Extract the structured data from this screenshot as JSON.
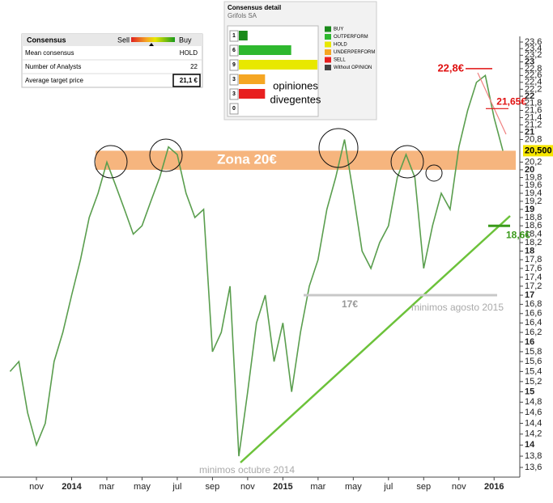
{
  "chart_data": [
    {
      "type": "line",
      "color": "#5a9e4e",
      "log": true,
      "x": [
        null,
        null,
        null,
        "nov",
        null,
        null,
        null,
        "2014",
        null,
        null,
        null,
        "mar",
        null,
        null,
        null,
        "may",
        null,
        null,
        null,
        "jul",
        null,
        null,
        null,
        "sep",
        null,
        null,
        null,
        "nov",
        null,
        null,
        null,
        "2015",
        null,
        null,
        null,
        "mar",
        null,
        null,
        null,
        "may",
        null,
        null,
        null,
        "jul",
        null,
        null,
        null,
        "sep",
        null,
        null,
        null,
        "nov",
        null,
        null,
        null,
        "2016",
        null
      ],
      "values": [
        15.4,
        15.6,
        14.6,
        14.0,
        14.4,
        15.6,
        16.2,
        17.0,
        17.8,
        18.8,
        19.4,
        20.2,
        19.6,
        19.0,
        18.4,
        18.6,
        19.2,
        19.8,
        20.6,
        20.4,
        19.4,
        18.8,
        19.0,
        15.8,
        16.2,
        17.2,
        13.8,
        15.0,
        16.4,
        17.0,
        15.6,
        16.4,
        15.0,
        16.2,
        17.2,
        17.8,
        19.0,
        19.8,
        20.8,
        19.4,
        18.0,
        17.6,
        18.2,
        18.6,
        19.8,
        20.4,
        19.8,
        17.6,
        18.6,
        19.4,
        19.0,
        20.6,
        21.6,
        22.4,
        22.6,
        21.4,
        20.5
      ],
      "ylim": [
        13.6,
        23.6
      ],
      "yticks": [
        {
          "value": 13.6,
          "label": "13,6"
        },
        {
          "value": 13.8,
          "label": "13,8"
        },
        14,
        {
          "value": 14.2,
          "label": "14,2"
        },
        {
          "value": 14.4,
          "label": "14,4"
        },
        {
          "value": 14.6,
          "label": "14,6"
        },
        {
          "value": 14.8,
          "label": "14,8"
        },
        15,
        {
          "value": 15.2,
          "label": "15,2"
        },
        {
          "value": 15.4,
          "label": "15,4"
        },
        {
          "value": 15.6,
          "label": "15,6"
        },
        {
          "value": 15.8,
          "label": "15,8"
        },
        16,
        {
          "value": 16.2,
          "label": "16,2"
        },
        {
          "value": 16.4,
          "label": "16,4"
        },
        {
          "value": 16.6,
          "label": "16,6"
        },
        {
          "value": 16.8,
          "label": "16,8"
        },
        17,
        {
          "value": 17.2,
          "label": "17,2"
        },
        {
          "value": 17.4,
          "label": "17,4"
        },
        {
          "value": 17.6,
          "label": "17,6"
        },
        {
          "value": 17.8,
          "label": "17,8"
        },
        18,
        {
          "value": 18.2,
          "label": "18,2"
        },
        {
          "value": 18.4,
          "label": "18,4"
        },
        {
          "value": 18.6,
          "label": "18,6"
        },
        {
          "value": 18.8,
          "label": "18,8"
        },
        19,
        {
          "value": 19.2,
          "label": "19,2"
        },
        {
          "value": 19.4,
          "label": "19,4"
        },
        {
          "value": 19.6,
          "label": "19,6"
        },
        {
          "value": 19.8,
          "label": "19,8"
        },
        20,
        {
          "value": 20.2,
          "label": "20,2"
        },
        {
          "value": 20.8,
          "label": "20,8"
        },
        21,
        {
          "value": 21.2,
          "label": "21,2"
        },
        {
          "value": 21.4,
          "label": "21,4"
        },
        {
          "value": 21.6,
          "label": "21,6"
        },
        {
          "value": 21.8,
          "label": "21,8"
        },
        22,
        {
          "value": 22.2,
          "label": "22,2"
        },
        {
          "value": 22.4,
          "label": "22,4"
        },
        {
          "value": 22.6,
          "label": "22,6"
        },
        {
          "value": 22.8,
          "label": "22,8"
        },
        23,
        {
          "value": 23.2,
          "label": "23,2"
        },
        {
          "value": 23.4,
          "label": "23,4"
        },
        {
          "value": 23.6,
          "label": "23,6"
        }
      ],
      "zone": {
        "label": "Zona 20€",
        "range": [
          20.0,
          20.5
        ],
        "color": "#f4a25e"
      },
      "levels": [
        {
          "label": "22,8€",
          "value": 22.8,
          "color": "#e01010"
        },
        {
          "label": "21,65€",
          "value": 21.65,
          "color": "#e01010"
        },
        {
          "label": "17€",
          "value": 17,
          "color": "#c8c8c8"
        },
        {
          "label": "18,6€",
          "value": 18.6,
          "color": "#3a9a1a"
        }
      ],
      "notes": [
        "minimos octubre 2014",
        "minimos agosto 2015"
      ],
      "last_price": {
        "value": 20.5,
        "label": "20,500",
        "color": "#f6e600"
      }
    },
    {
      "type": "hbar",
      "title": "Consensus detail",
      "subtitle": "Grifols SA",
      "categories": [
        "BUY",
        "OUTPERFORM",
        "HOLD",
        "UNDERPERFORM",
        "SELL",
        "Without OPINION"
      ],
      "values": [
        1,
        6,
        9,
        3,
        3,
        0
      ],
      "colors": [
        "#1a8a1a",
        "#2eb82e",
        "#e8e800",
        "#f5a623",
        "#e82020",
        "#444444"
      ],
      "xlim": [
        0,
        9
      ],
      "annotation": [
        "opiniones",
        "divegentes"
      ]
    }
  ],
  "consensus": {
    "title": "Consensus",
    "scale": [
      "Sell",
      "Buy"
    ],
    "rows": [
      [
        "Mean consensus",
        "HOLD"
      ],
      [
        "Number of Analysts",
        "22"
      ],
      [
        "Average target price",
        "21,1 €"
      ]
    ]
  }
}
